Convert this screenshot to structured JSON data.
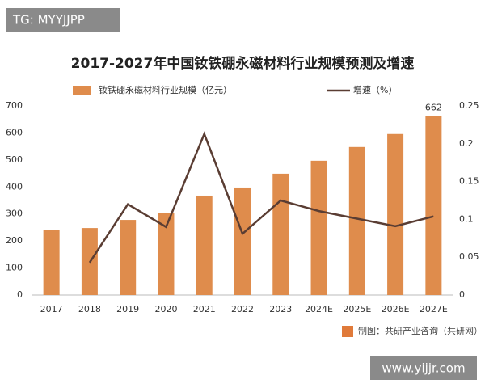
{
  "overlay": {
    "tag": "TG: MYYJJPP",
    "website": "www.yijjr.com"
  },
  "chart_data": {
    "type": "bar_line",
    "title": "2017-2027年中国钕铁硼永磁材料行业规模预测及增速",
    "source": "制图：共研产业咨询（共研网）",
    "categories": [
      "2017",
      "2018",
      "2019",
      "2020",
      "2021",
      "2022",
      "2023",
      "2024E",
      "2025E",
      "2026E",
      "2027E"
    ],
    "series": [
      {
        "name": "钕铁硼永磁材料行业规模（亿元）",
        "type": "bar",
        "color": "#df8c4c",
        "values": [
          240,
          248,
          278,
          305,
          368,
          398,
          449,
          497,
          548,
          596,
          662
        ]
      },
      {
        "name": "增速（%）",
        "type": "line",
        "axis": "y2",
        "color": "#5a3d33",
        "values": [
          null,
          0.043,
          0.12,
          0.09,
          0.213,
          0.081,
          0.125,
          0.111,
          0.101,
          0.091,
          0.104
        ]
      }
    ],
    "ylim": [
      0,
      700
    ],
    "yticks": [
      0,
      100,
      200,
      300,
      400,
      500,
      600,
      700
    ],
    "y2lim": [
      0,
      0.25
    ],
    "y2ticks": [
      0,
      0.05,
      0.1,
      0.15,
      0.2,
      0.25
    ],
    "grid": false
  }
}
